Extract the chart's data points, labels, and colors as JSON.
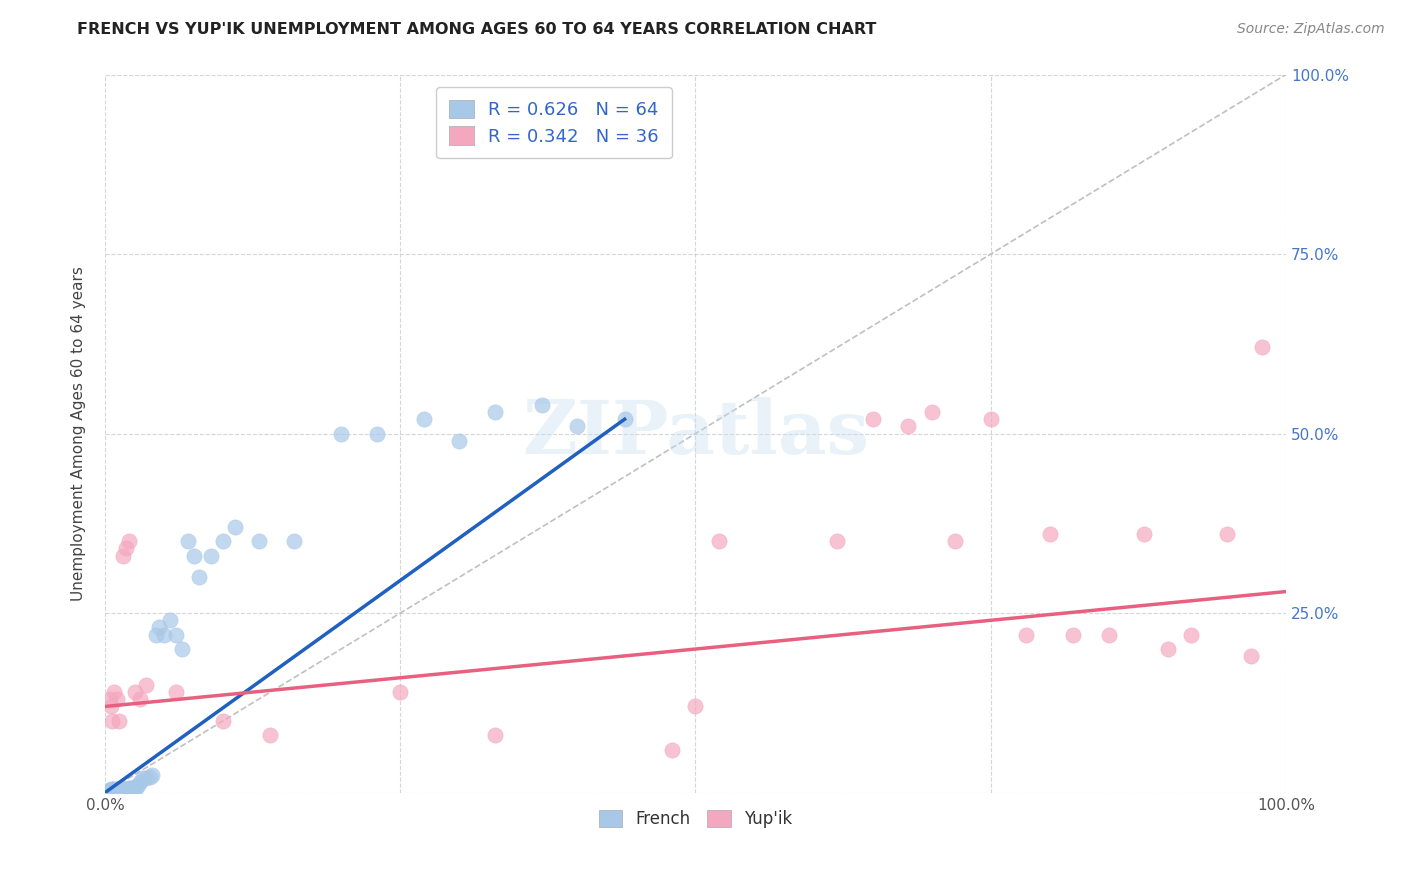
{
  "title": "FRENCH VS YUP'IK UNEMPLOYMENT AMONG AGES 60 TO 64 YEARS CORRELATION CHART",
  "source": "Source: ZipAtlas.com",
  "ylabel": "Unemployment Among Ages 60 to 64 years",
  "xlim": [
    0,
    1
  ],
  "ylim": [
    0,
    1
  ],
  "xticks": [
    0,
    0.25,
    0.5,
    0.75,
    1.0
  ],
  "yticks": [
    0,
    0.25,
    0.5,
    0.75,
    1.0
  ],
  "xticklabels_bottom": [
    "0.0%",
    "",
    "",
    "",
    "100.0%"
  ],
  "yticklabels_right": [
    "",
    "25.0%",
    "50.0%",
    "75.0%",
    "100.0%"
  ],
  "french_R": 0.626,
  "french_N": 64,
  "yupik_R": 0.342,
  "yupik_N": 36,
  "french_color": "#a8c8e8",
  "yupik_color": "#f4a8c0",
  "french_line_color": "#2060c0",
  "yupik_line_color": "#e86080",
  "diagonal_color": "#c0c0c0",
  "watermark": "ZIPatlas",
  "french_scatter_x": [
    0.002,
    0.003,
    0.004,
    0.004,
    0.005,
    0.005,
    0.006,
    0.006,
    0.007,
    0.007,
    0.008,
    0.008,
    0.009,
    0.009,
    0.01,
    0.01,
    0.011,
    0.011,
    0.012,
    0.012,
    0.013,
    0.013,
    0.014,
    0.014,
    0.015,
    0.015,
    0.016,
    0.017,
    0.018,
    0.019,
    0.02,
    0.021,
    0.022,
    0.023,
    0.025,
    0.026,
    0.028,
    0.03,
    0.032,
    0.035,
    0.038,
    0.04,
    0.043,
    0.046,
    0.05,
    0.055,
    0.06,
    0.065,
    0.07,
    0.075,
    0.08,
    0.09,
    0.1,
    0.11,
    0.13,
    0.16,
    0.2,
    0.23,
    0.27,
    0.3,
    0.33,
    0.37,
    0.4,
    0.44
  ],
  "french_scatter_y": [
    0.002,
    0.003,
    0.002,
    0.004,
    0.003,
    0.005,
    0.004,
    0.003,
    0.005,
    0.004,
    0.003,
    0.005,
    0.004,
    0.003,
    0.005,
    0.004,
    0.003,
    0.005,
    0.004,
    0.003,
    0.005,
    0.004,
    0.003,
    0.005,
    0.004,
    0.003,
    0.005,
    0.004,
    0.003,
    0.005,
    0.006,
    0.005,
    0.006,
    0.007,
    0.008,
    0.007,
    0.01,
    0.015,
    0.02,
    0.02,
    0.022,
    0.025,
    0.22,
    0.23,
    0.22,
    0.24,
    0.22,
    0.2,
    0.35,
    0.33,
    0.3,
    0.33,
    0.35,
    0.37,
    0.35,
    0.35,
    0.5,
    0.5,
    0.52,
    0.49,
    0.53,
    0.54,
    0.51,
    0.52
  ],
  "yupik_scatter_x": [
    0.004,
    0.005,
    0.006,
    0.008,
    0.01,
    0.012,
    0.015,
    0.018,
    0.02,
    0.025,
    0.03,
    0.035,
    0.06,
    0.1,
    0.14,
    0.25,
    0.33,
    0.48,
    0.5,
    0.52,
    0.62,
    0.65,
    0.68,
    0.7,
    0.72,
    0.75,
    0.78,
    0.8,
    0.82,
    0.85,
    0.88,
    0.9,
    0.92,
    0.95,
    0.97,
    0.98
  ],
  "yupik_scatter_y": [
    0.13,
    0.12,
    0.1,
    0.14,
    0.13,
    0.1,
    0.33,
    0.34,
    0.35,
    0.14,
    0.13,
    0.15,
    0.14,
    0.1,
    0.08,
    0.14,
    0.08,
    0.06,
    0.12,
    0.35,
    0.35,
    0.52,
    0.51,
    0.53,
    0.35,
    0.52,
    0.22,
    0.36,
    0.22,
    0.22,
    0.36,
    0.2,
    0.22,
    0.36,
    0.19,
    0.62
  ]
}
